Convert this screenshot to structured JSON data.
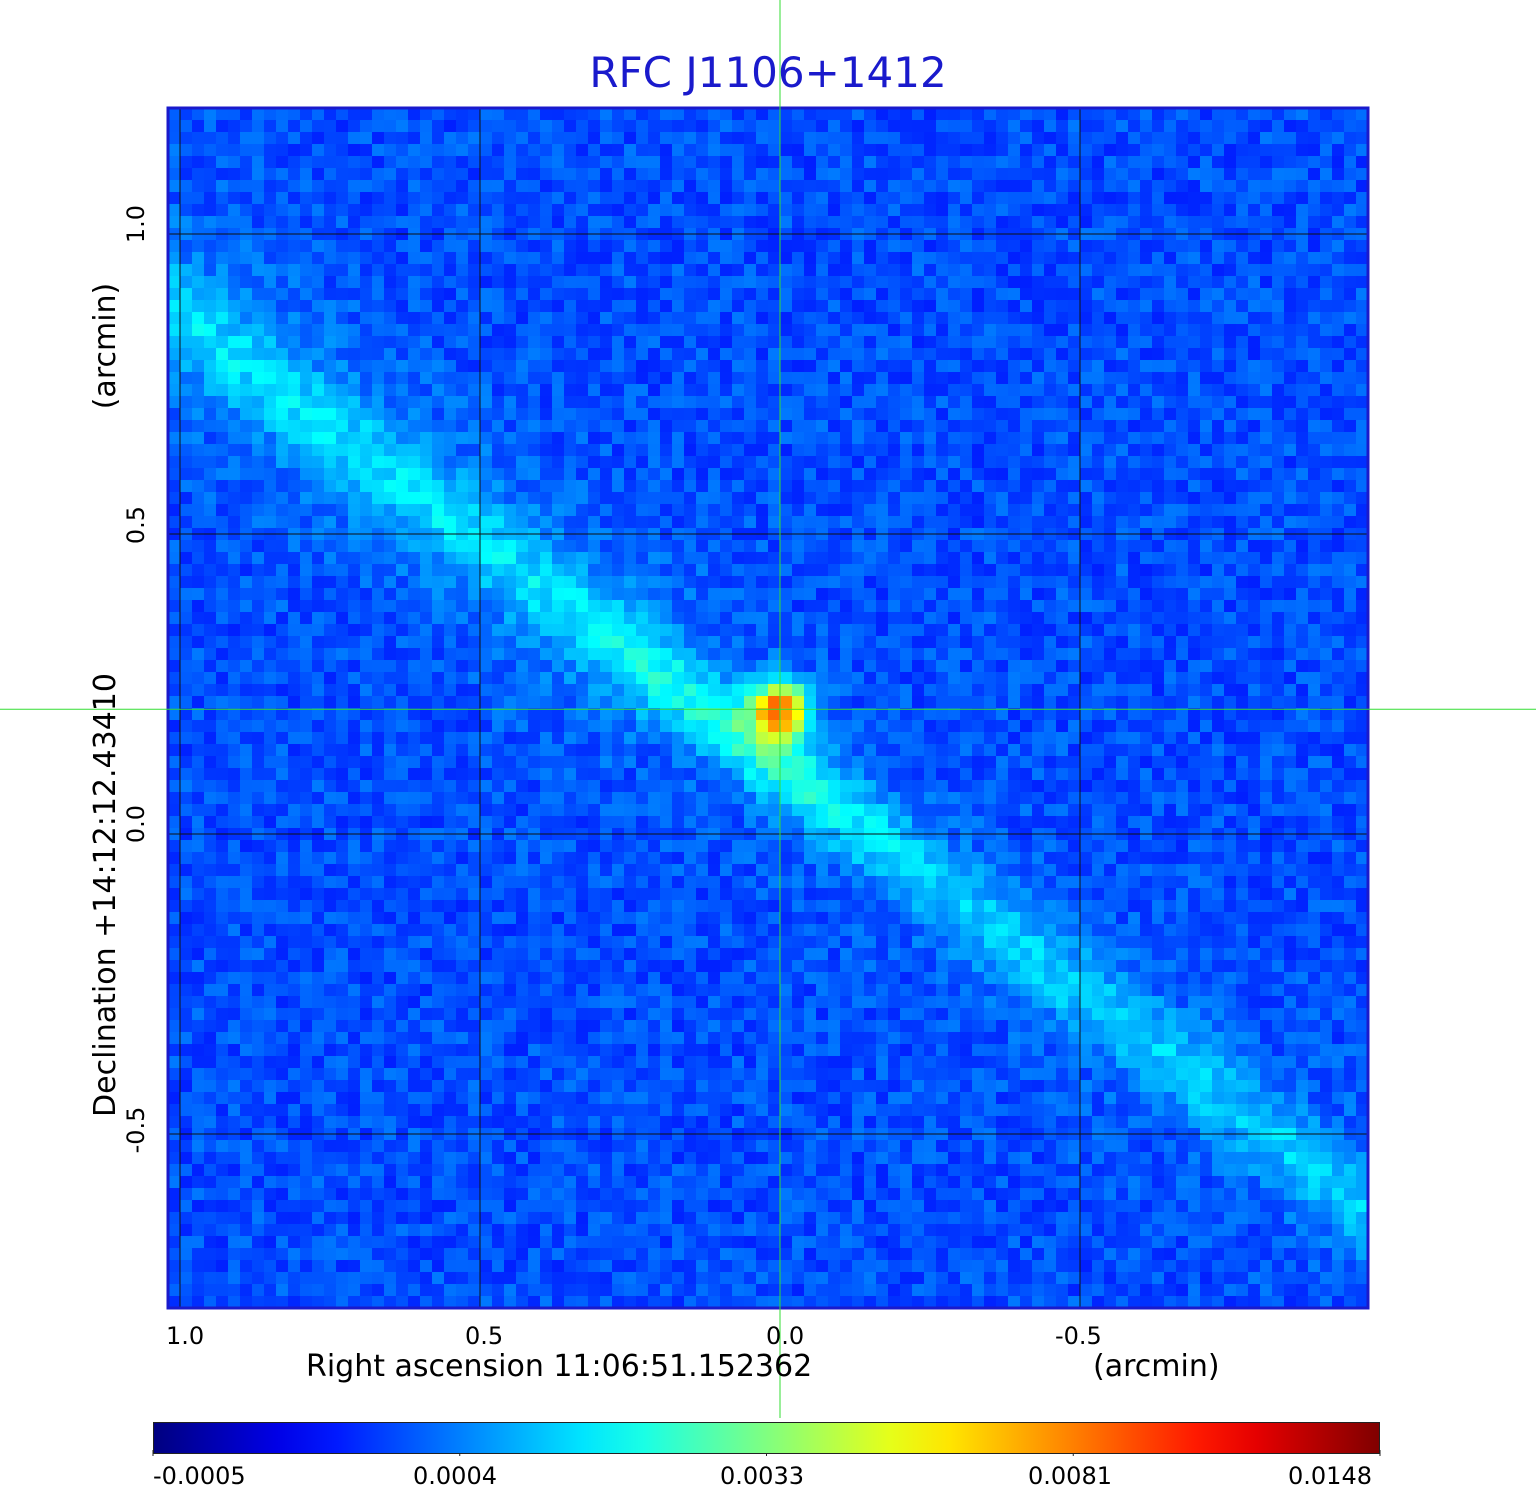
{
  "chart_data": {
    "type": "heatmap",
    "title": "RFC J1106+1412",
    "xlabel": "Right ascension  11:06:51.152362",
    "xunit": "(arcmin)",
    "ylabel": "Declination  +14:12:12.43410",
    "yunit": "(arcmin)",
    "x_axis": {
      "ticks": [
        "1.0",
        "0.5",
        "0.0",
        "-0.5"
      ],
      "tick_values": [
        1.0,
        0.5,
        0.0,
        -0.5
      ],
      "range": [
        1.02,
        -0.98
      ]
    },
    "y_axis": {
      "ticks": [
        "1.0",
        "0.5",
        "0.0",
        "-0.5"
      ],
      "tick_values": [
        1.0,
        0.5,
        0.0,
        -0.5
      ],
      "range": [
        -0.79,
        1.21
      ]
    },
    "grid": true,
    "crosshair": {
      "x": 0.0,
      "y": 0.208,
      "color": "#33dd33"
    },
    "source_peak": {
      "x": 0.0,
      "y": 0.208,
      "value": 0.0148
    },
    "jet": {
      "direction": "upper-left to lower-right",
      "from": [
        0.45,
        0.45
      ],
      "to": [
        -0.95,
        -0.6
      ]
    },
    "colorbar": {
      "colormap": "jet",
      "tick_labels": [
        "-0.0005",
        "0.0004",
        "0.0033",
        "0.0081",
        "0.0148"
      ],
      "tick_values": [
        -0.0005,
        0.0004,
        0.0033,
        0.0081,
        0.0148
      ],
      "position": "bottom"
    }
  }
}
